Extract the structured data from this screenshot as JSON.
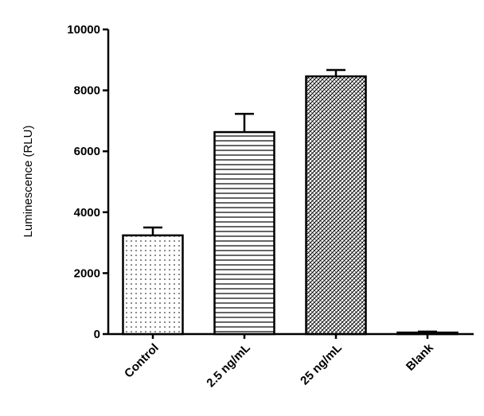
{
  "chart_data": {
    "type": "bar",
    "y_label": "Luminescence (RLU)",
    "categories": [
      "Control",
      "2.5 ng/mL",
      "25 ng/mL",
      "Blank"
    ],
    "values": [
      3240,
      6630,
      8460,
      50
    ],
    "errors": [
      260,
      600,
      210,
      30
    ],
    "ylim": [
      0,
      10000
    ],
    "yticks": [
      0,
      2000,
      4000,
      6000,
      8000,
      10000
    ]
  }
}
